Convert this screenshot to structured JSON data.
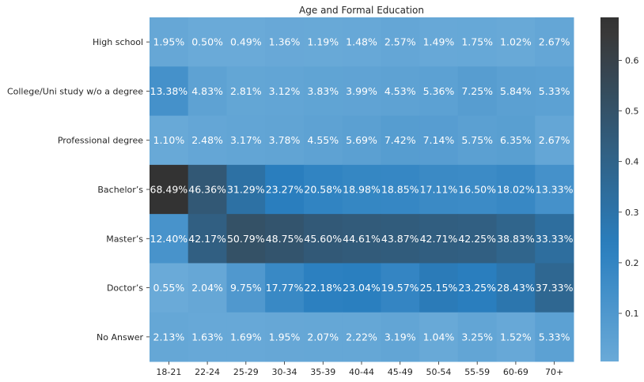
{
  "chart_data": {
    "type": "heatmap",
    "title": "Age and Formal Education",
    "rows": [
      "High school",
      "College/Uni study w/o a degree",
      "Professional degree",
      "Bachelor’s",
      "Master’s",
      "Doctor’s",
      "No Answer"
    ],
    "columns": [
      "18-21",
      "22-24",
      "25-29",
      "30-34",
      "35-39",
      "40-44",
      "45-49",
      "50-54",
      "55-59",
      "60-69",
      "70+"
    ],
    "values": [
      [
        0.0195,
        0.005,
        0.0049,
        0.0136,
        0.0119,
        0.0148,
        0.0257,
        0.0149,
        0.0175,
        0.0102,
        0.0267
      ],
      [
        0.1338,
        0.0483,
        0.0281,
        0.0312,
        0.0383,
        0.0399,
        0.0453,
        0.0536,
        0.0725,
        0.0584,
        0.0533
      ],
      [
        0.011,
        0.0248,
        0.0317,
        0.0378,
        0.0455,
        0.0569,
        0.0742,
        0.0714,
        0.0575,
        0.0635,
        0.0267
      ],
      [
        0.6849,
        0.4636,
        0.3129,
        0.2327,
        0.2058,
        0.1898,
        0.1885,
        0.1711,
        0.165,
        0.1802,
        0.1333
      ],
      [
        0.124,
        0.4217,
        0.5079,
        0.4875,
        0.456,
        0.4461,
        0.4387,
        0.4271,
        0.4225,
        0.3883,
        0.3333
      ],
      [
        0.0055,
        0.0204,
        0.0975,
        0.1777,
        0.2218,
        0.2304,
        0.1957,
        0.2515,
        0.2325,
        0.2843,
        0.3733
      ],
      [
        0.0213,
        0.0163,
        0.0169,
        0.0195,
        0.0207,
        0.0222,
        0.0319,
        0.0104,
        0.0325,
        0.0152,
        0.0533
      ]
    ],
    "cell_labels": [
      [
        "1.95%",
        "0.50%",
        "0.49%",
        "1.36%",
        "1.19%",
        "1.48%",
        "2.57%",
        "1.49%",
        "1.75%",
        "1.02%",
        "2.67%"
      ],
      [
        "13.38%",
        "4.83%",
        "2.81%",
        "3.12%",
        "3.83%",
        "3.99%",
        "4.53%",
        "5.36%",
        "7.25%",
        "5.84%",
        "5.33%"
      ],
      [
        "1.10%",
        "2.48%",
        "3.17%",
        "3.78%",
        "4.55%",
        "5.69%",
        "7.42%",
        "7.14%",
        "5.75%",
        "6.35%",
        "2.67%"
      ],
      [
        "68.49%",
        "46.36%",
        "31.29%",
        "23.27%",
        "20.58%",
        "18.98%",
        "18.85%",
        "17.11%",
        "16.50%",
        "18.02%",
        "13.33%"
      ],
      [
        "12.40%",
        "42.17%",
        "50.79%",
        "48.75%",
        "45.60%",
        "44.61%",
        "43.87%",
        "42.71%",
        "42.25%",
        "38.83%",
        "33.33%"
      ],
      [
        "0.55%",
        "2.04%",
        "9.75%",
        "17.77%",
        "22.18%",
        "23.04%",
        "19.57%",
        "25.15%",
        "23.25%",
        "28.43%",
        "37.33%"
      ],
      [
        "2.13%",
        "1.63%",
        "1.69%",
        "1.95%",
        "2.07%",
        "2.22%",
        "3.19%",
        "1.04%",
        "3.25%",
        "1.52%",
        "5.33%"
      ]
    ],
    "colorbar": {
      "vmin": 0.0049,
      "vmax": 0.6849,
      "ticks": [
        "0.1",
        "0.2",
        "0.3",
        "0.4",
        "0.5",
        "0.6"
      ],
      "tick_values": [
        0.1,
        0.2,
        0.3,
        0.4,
        0.5,
        0.6
      ]
    },
    "colormap": [
      "#6aaad8",
      "#2a7fbf",
      "#393939",
      "#333333"
    ]
  }
}
